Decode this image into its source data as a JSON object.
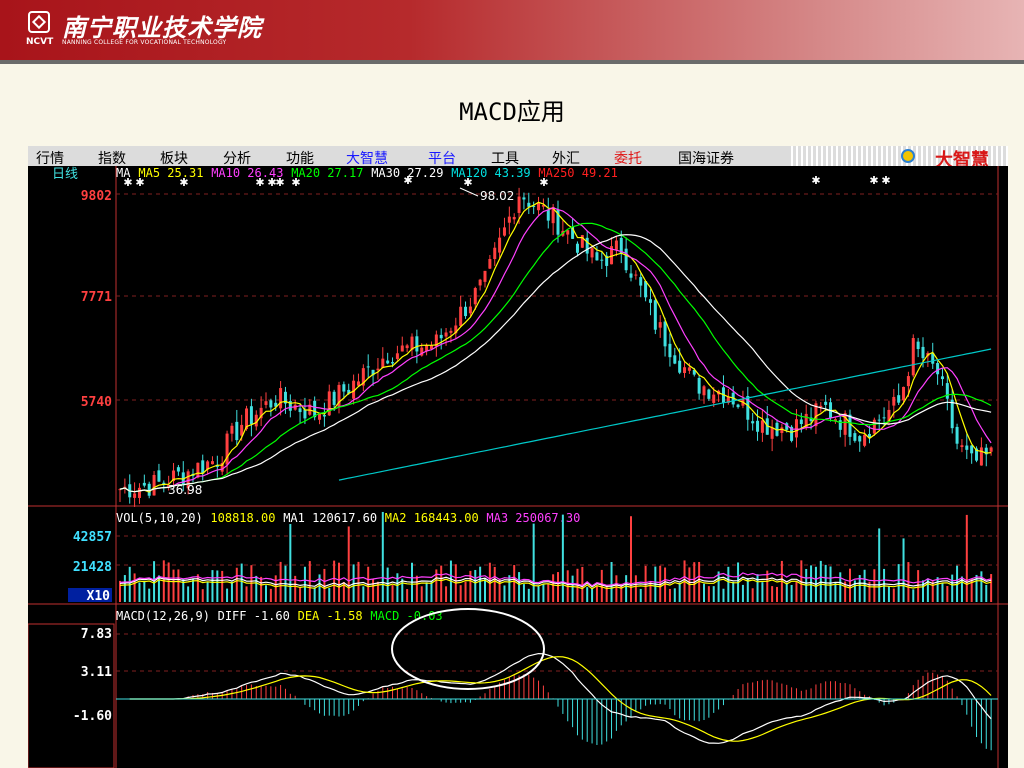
{
  "header": {
    "school_name": "南宁职业技术学院",
    "school_abbr": "NCVT",
    "school_en": "NANNING COLLEGE FOR VOCATIONAL TECHNOLOGY"
  },
  "slide": {
    "title": "MACD应用"
  },
  "menu": {
    "items": [
      {
        "label": "行情",
        "color": "#000000"
      },
      {
        "label": "指数",
        "color": "#000000"
      },
      {
        "label": "板块",
        "color": "#000000"
      },
      {
        "label": "分析",
        "color": "#000000"
      },
      {
        "label": "功能",
        "color": "#000000"
      },
      {
        "label": "大智慧",
        "color": "#1a1aff"
      },
      {
        "label": "平台",
        "color": "#1a1aff"
      },
      {
        "label": "工具",
        "color": "#000000"
      },
      {
        "label": "外汇",
        "color": "#000000"
      },
      {
        "label": "委托",
        "color": "#e01818"
      },
      {
        "label": "国海证券",
        "color": "#000000"
      }
    ],
    "brand": "大智慧",
    "brand_icon": "dzh-logo-icon"
  },
  "software": {
    "period": "日线",
    "price_ticks": [
      "9802",
      "7771",
      "5740"
    ],
    "ma_legend": [
      {
        "text": "MA",
        "color": "#ffffff"
      },
      {
        "text": "MA5 25.31",
        "color": "#ffff00"
      },
      {
        "text": "MA10 26.43",
        "color": "#ff40ff"
      },
      {
        "text": "MA20 27.17",
        "color": "#00ff00"
      },
      {
        "text": "MA30 27.29",
        "color": "#ffffff"
      },
      {
        "text": "MA120 43.39",
        "color": "#00e0e0"
      },
      {
        "text": "MA250 49.21",
        "color": "#ff2020"
      }
    ],
    "high_label": "98.02",
    "low_label": "36.98",
    "vol_legend": [
      {
        "text": "VOL(5,10,20)",
        "color": "#ffffff"
      },
      {
        "text": "108818.00",
        "color": "#ffff00"
      },
      {
        "text": "MA1 120617.60",
        "color": "#ffffff"
      },
      {
        "text": "MA2 168443.00",
        "color": "#ffff00"
      },
      {
        "text": "MA3 250067.30",
        "color": "#ff40ff"
      }
    ],
    "vol_ticks": [
      "42857",
      "21428"
    ],
    "vol_unit": "X10",
    "macd_legend": [
      {
        "text": "MACD(12,26,9)",
        "color": "#ffffff"
      },
      {
        "text": "DIFF -1.60",
        "color": "#ffffff"
      },
      {
        "text": "DEA -1.58",
        "color": "#ffff00"
      },
      {
        "text": "MACD -0.03",
        "color": "#00ff00"
      }
    ],
    "macd_ticks": [
      "7.83",
      "3.11",
      "-1.60"
    ]
  },
  "colors": {
    "up": "#ff4040",
    "down": "#40e0e0",
    "ma5": "#ffff00",
    "ma10": "#ff40ff",
    "ma20": "#00ff00",
    "ma30": "#ffffff",
    "ma120": "#00c8c8",
    "diff": "#ffffff",
    "dea": "#ffff00"
  }
}
